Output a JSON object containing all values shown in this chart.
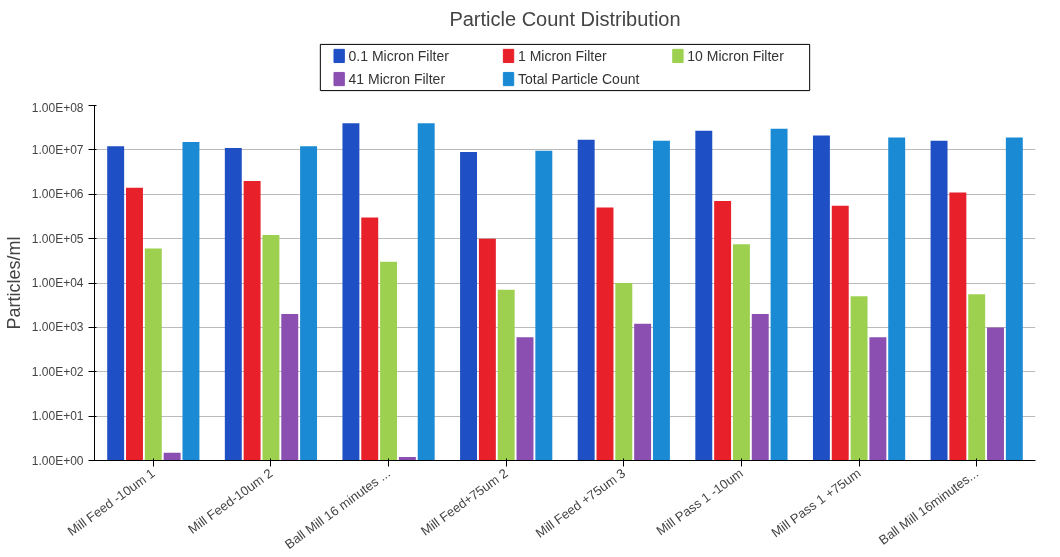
{
  "chart_data": {
    "type": "bar",
    "title": "Particle Count Distribution",
    "ylabel": "Particles/ml",
    "categories": [
      "Mill Feed -10um 1",
      "Mill Feed-10um 2",
      "Ball Mill 16 minutes ...",
      "Mill Feed+75um 2",
      "Mill Feed +75um 3",
      "Mill Pass 1 -10um",
      "Mill Pass 1 +75um",
      "Ball Mill 16minutes..."
    ],
    "series": [
      {
        "name": "0.1 Micron Filter",
        "color": "#1f4fc4",
        "values": [
          12000000,
          11000000,
          40000000,
          9000000,
          17000000,
          27000000,
          21000000,
          16000000
        ]
      },
      {
        "name": "1 Micron Filter",
        "color": "#e8202a",
        "values": [
          1400000,
          2000000,
          300000,
          100000,
          500000,
          700000,
          550000,
          1100000
        ]
      },
      {
        "name": "10 Micron Filter",
        "color": "#9ed050",
        "values": [
          60000,
          120000,
          30000,
          7000,
          10000,
          75000,
          5000,
          5600
        ]
      },
      {
        "name": "41 Micron Filter",
        "color": "#8a4fb0",
        "values": [
          1.5,
          2000,
          1.2,
          600,
          1200,
          2000,
          600,
          1000
        ]
      },
      {
        "name": "Total Particle Count",
        "color": "#1a8ad4",
        "values": [
          15000000,
          12000000,
          40000000,
          9500000,
          16000000,
          30000000,
          19000000,
          19000000
        ]
      }
    ],
    "log": "y",
    "ylim": [
      1,
      100000000
    ],
    "yticks": [
      {
        "value": 1,
        "label": "1.00E+00"
      },
      {
        "value": 10,
        "label": "1.00E+01"
      },
      {
        "value": 100,
        "label": "1.00E+02"
      },
      {
        "value": 1000,
        "label": "1.00E+03"
      },
      {
        "value": 10000,
        "label": "1.00E+04"
      },
      {
        "value": 100000,
        "label": "1.00E+05"
      },
      {
        "value": 1000000,
        "label": "1.00E+06"
      },
      {
        "value": 10000000,
        "label": "1.00E+07"
      },
      {
        "value": 100000000,
        "label": "1.00E+08"
      }
    ],
    "grid": "y",
    "legend": "top"
  }
}
